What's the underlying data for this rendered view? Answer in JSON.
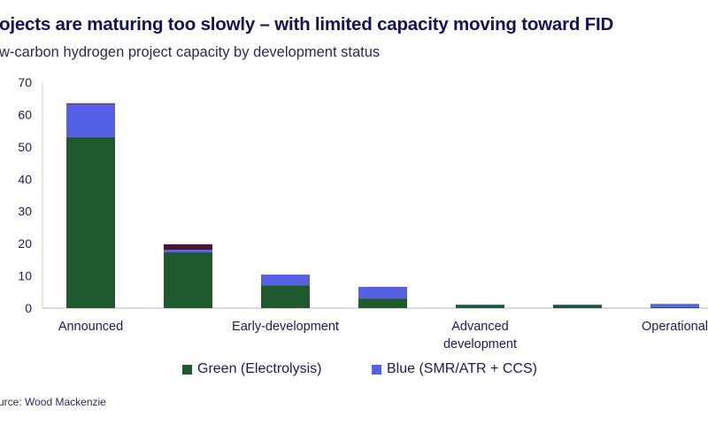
{
  "title": "ojects are maturing too slowly – with limited capacity moving toward FID",
  "subtitle": "w-carbon hydrogen project capacity by development status",
  "source": "urce: Wood Mackenzie",
  "chart_data": {
    "type": "bar",
    "stacked": true,
    "categories": [
      "Announced",
      "",
      "Early-development",
      "",
      "Advanced development",
      "",
      "Operational"
    ],
    "series": [
      {
        "name": "Green (Electrolysis)",
        "color": "#1f5a2e",
        "values": [
          53,
          17.3,
          7.1,
          3.0,
          1.0,
          1.0,
          0.3
        ]
      },
      {
        "name": "Blue (SMR/ATR + CCS)",
        "color": "#5560e4",
        "values": [
          10.2,
          0.8,
          3.3,
          3.6,
          0.1,
          0.1,
          1.0
        ]
      },
      {
        "color": "#4a1236",
        "values": [
          0.3,
          1.7,
          0,
          0,
          0,
          0,
          0
        ]
      }
    ],
    "yticks": [
      0,
      10,
      20,
      30,
      40,
      50,
      60,
      70
    ],
    "ylim": [
      0,
      70
    ],
    "grid": false,
    "legend_position": "bottom",
    "xlabel": "",
    "ylabel": ""
  }
}
